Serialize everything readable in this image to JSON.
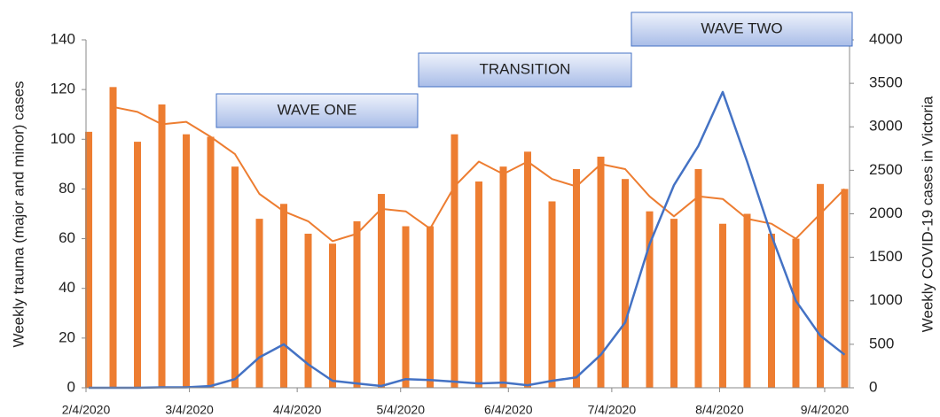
{
  "chart_data": {
    "type": "bar",
    "y_label": "Weekly trauma (major and minor) cases",
    "y2_label": "Weekly COVID-19 cases in Victoria",
    "x": [
      0,
      1,
      2,
      3,
      4,
      5,
      6,
      7,
      8,
      9,
      10,
      11,
      12,
      13,
      14,
      15,
      16,
      17,
      18,
      19,
      20,
      21,
      22,
      23,
      24,
      25,
      26,
      27,
      28,
      29,
      30,
      31
    ],
    "xlim": [
      -0.11,
      31.2
    ],
    "xticks": [
      {
        "value": -0.11,
        "label": "2/4/2020"
      },
      {
        "value": 4.13,
        "label": "3/4/2020"
      },
      {
        "value": 8.55,
        "label": "4/4/2020"
      },
      {
        "value": 12.79,
        "label": "5/4/2020"
      },
      {
        "value": 17.21,
        "label": "6/4/2020"
      },
      {
        "value": 21.45,
        "label": "7/4/2020"
      },
      {
        "value": 25.87,
        "label": "8/4/2020"
      },
      {
        "value": 30.18,
        "label": "9/4/2020"
      }
    ],
    "ylim": [
      0,
      140
    ],
    "yticks": [
      0,
      20,
      40,
      60,
      80,
      100,
      120,
      140
    ],
    "y2lim": [
      0,
      4000
    ],
    "y2ticks": [
      0,
      500,
      1000,
      1500,
      2000,
      2500,
      3000,
      3500,
      4000
    ],
    "series": [
      {
        "type": "bar",
        "color": "#ED7D31",
        "values": [
          103,
          121,
          99,
          114,
          102,
          101,
          89,
          68,
          74,
          62,
          58,
          67,
          78,
          65,
          65,
          102,
          83,
          89,
          95,
          75,
          88,
          93,
          84,
          71,
          68,
          88,
          66,
          70,
          62,
          60,
          82,
          80
        ]
      },
      {
        "type": "line",
        "color": "#ED7D31",
        "values": [
          null,
          113,
          111,
          106,
          107,
          101,
          94,
          78,
          71,
          67,
          59,
          62,
          72,
          71,
          64,
          81,
          91,
          86,
          91,
          84,
          81,
          90,
          88,
          77,
          69,
          77,
          76,
          68,
          66,
          60,
          70,
          80
        ]
      },
      {
        "type": "line",
        "color": "#4472C4",
        "axis": "y2",
        "values": [
          0,
          0,
          0,
          5,
          5,
          20,
          100,
          350,
          500,
          270,
          80,
          50,
          20,
          100,
          90,
          70,
          50,
          60,
          30,
          80,
          120,
          380,
          750,
          1650,
          2330,
          2780,
          3400,
          2600,
          1750,
          1000,
          600,
          380
        ]
      }
    ],
    "annotations": [
      {
        "text": "WAVE ONE"
      },
      {
        "text": "TRANSITION"
      },
      {
        "text": "WAVE TWO"
      }
    ]
  }
}
